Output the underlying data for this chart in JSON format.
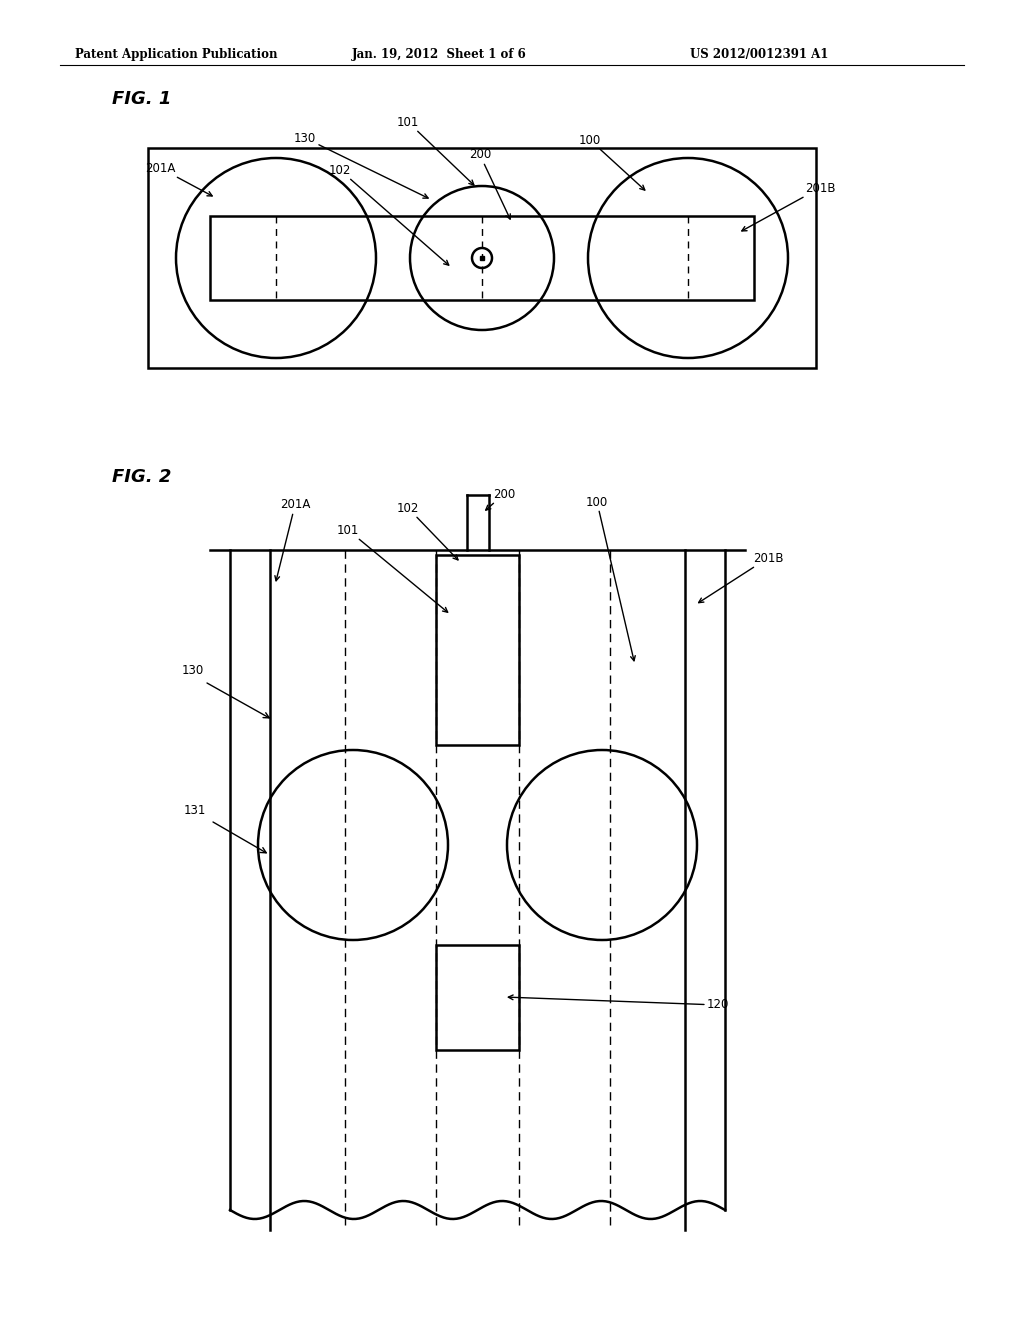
{
  "bg_color": "#ffffff",
  "header_text": "Patent Application Publication",
  "header_date": "Jan. 19, 2012  Sheet 1 of 6",
  "header_patent": "US 2012/0012391 A1",
  "fig1_label": "FIG. 1",
  "fig2_label": "FIG. 2",
  "line_color": "#000000"
}
